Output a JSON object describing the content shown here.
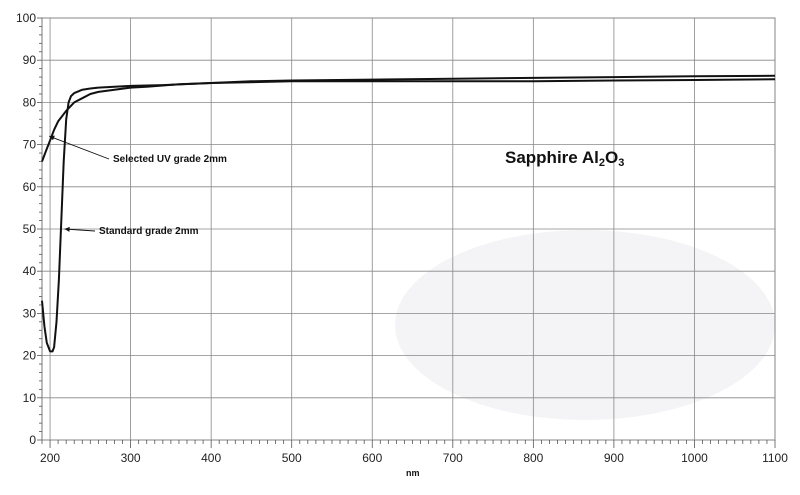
{
  "chart_data": {
    "type": "line",
    "title": {
      "main": "Sapphire Al",
      "sub1": "2",
      "mid": "O",
      "sub2": "3"
    },
    "xlabel": "nm",
    "ylabel": "",
    "xlim": [
      190,
      1100
    ],
    "ylim": [
      0,
      100
    ],
    "x_ticks": [
      200,
      300,
      400,
      500,
      600,
      700,
      800,
      900,
      1000,
      1100
    ],
    "y_ticks": [
      0,
      10,
      20,
      30,
      40,
      50,
      60,
      70,
      80,
      90,
      100
    ],
    "grid": true,
    "legend": "none",
    "series": [
      {
        "name": "Selected UV grade 2mm",
        "x": [
          190,
          195,
          200,
          205,
          210,
          220,
          230,
          240,
          250,
          260,
          280,
          300,
          320,
          340,
          360,
          400,
          450,
          500,
          600,
          700,
          800,
          900,
          1000,
          1100
        ],
        "y": [
          66,
          68.5,
          71,
          73.5,
          75.5,
          78,
          80,
          81,
          82,
          82.5,
          83,
          83.5,
          83.7,
          84,
          84.3,
          84.6,
          85,
          85.2,
          85.4,
          85.6,
          85.8,
          86,
          86.2,
          86.3
        ]
      },
      {
        "name": "Standard grade 2mm",
        "x": [
          190,
          193,
          196,
          200,
          203,
          205,
          208,
          211,
          214,
          217,
          220,
          223,
          226,
          230,
          235,
          240,
          250,
          260,
          280,
          300,
          340,
          400,
          500,
          600,
          700,
          800,
          900,
          1000,
          1100
        ],
        "y": [
          33,
          27,
          23,
          21,
          21,
          22,
          28,
          38,
          52,
          66,
          76,
          80,
          81.5,
          82.2,
          82.6,
          83,
          83.3,
          83.5,
          83.7,
          83.9,
          84.1,
          84.6,
          85,
          85,
          85,
          85,
          85.2,
          85.3,
          85.5
        ]
      }
    ],
    "annotations": [
      {
        "text": "Selected UV grade 2mm",
        "arrow_to": [
          199,
          72
        ]
      },
      {
        "text": "Standard grade 2mm",
        "arrow_to": [
          218,
          50
        ]
      }
    ]
  }
}
